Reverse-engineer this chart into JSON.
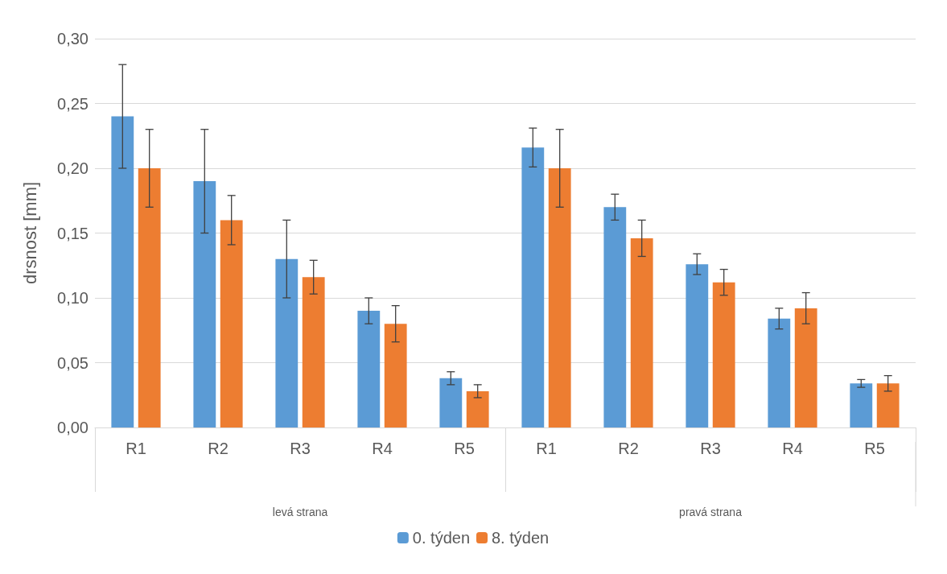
{
  "chart_data": {
    "type": "bar",
    "ylabel": "drsnost [mm]",
    "categories": [
      "R1",
      "R2",
      "R3",
      "R4",
      "R5",
      "R1",
      "R2",
      "R3",
      "R4",
      "R5"
    ],
    "annotations": [
      "levá strana",
      "pravá strana"
    ],
    "series": [
      {
        "name": "0. týden",
        "color": "#5b9bd5",
        "values": [
          0.24,
          0.19,
          0.13,
          0.09,
          0.038,
          0.216,
          0.17,
          0.126,
          0.084,
          0.034
        ],
        "errors": [
          0.04,
          0.04,
          0.03,
          0.01,
          0.005,
          0.015,
          0.01,
          0.008,
          0.008,
          0.003
        ]
      },
      {
        "name": "8. týden",
        "color": "#ed7d31",
        "values": [
          0.2,
          0.16,
          0.116,
          0.08,
          0.028,
          0.2,
          0.146,
          0.112,
          0.092,
          0.034
        ],
        "errors": [
          0.03,
          0.019,
          0.013,
          0.014,
          0.005,
          0.03,
          0.014,
          0.01,
          0.012,
          0.006
        ]
      }
    ],
    "ylim": [
      0,
      0.3
    ],
    "yticks": [
      {
        "value": 0,
        "label": "0,00"
      },
      {
        "value": 0.05,
        "label": "0,05"
      },
      {
        "value": 0.1,
        "label": "0,10"
      },
      {
        "value": 0.15,
        "label": "0,15"
      },
      {
        "value": 0.2,
        "label": "0,20"
      },
      {
        "value": 0.25,
        "label": "0,25"
      },
      {
        "value": 0.3,
        "label": "0,30"
      }
    ],
    "grid": "y",
    "legend": "bottom"
  }
}
